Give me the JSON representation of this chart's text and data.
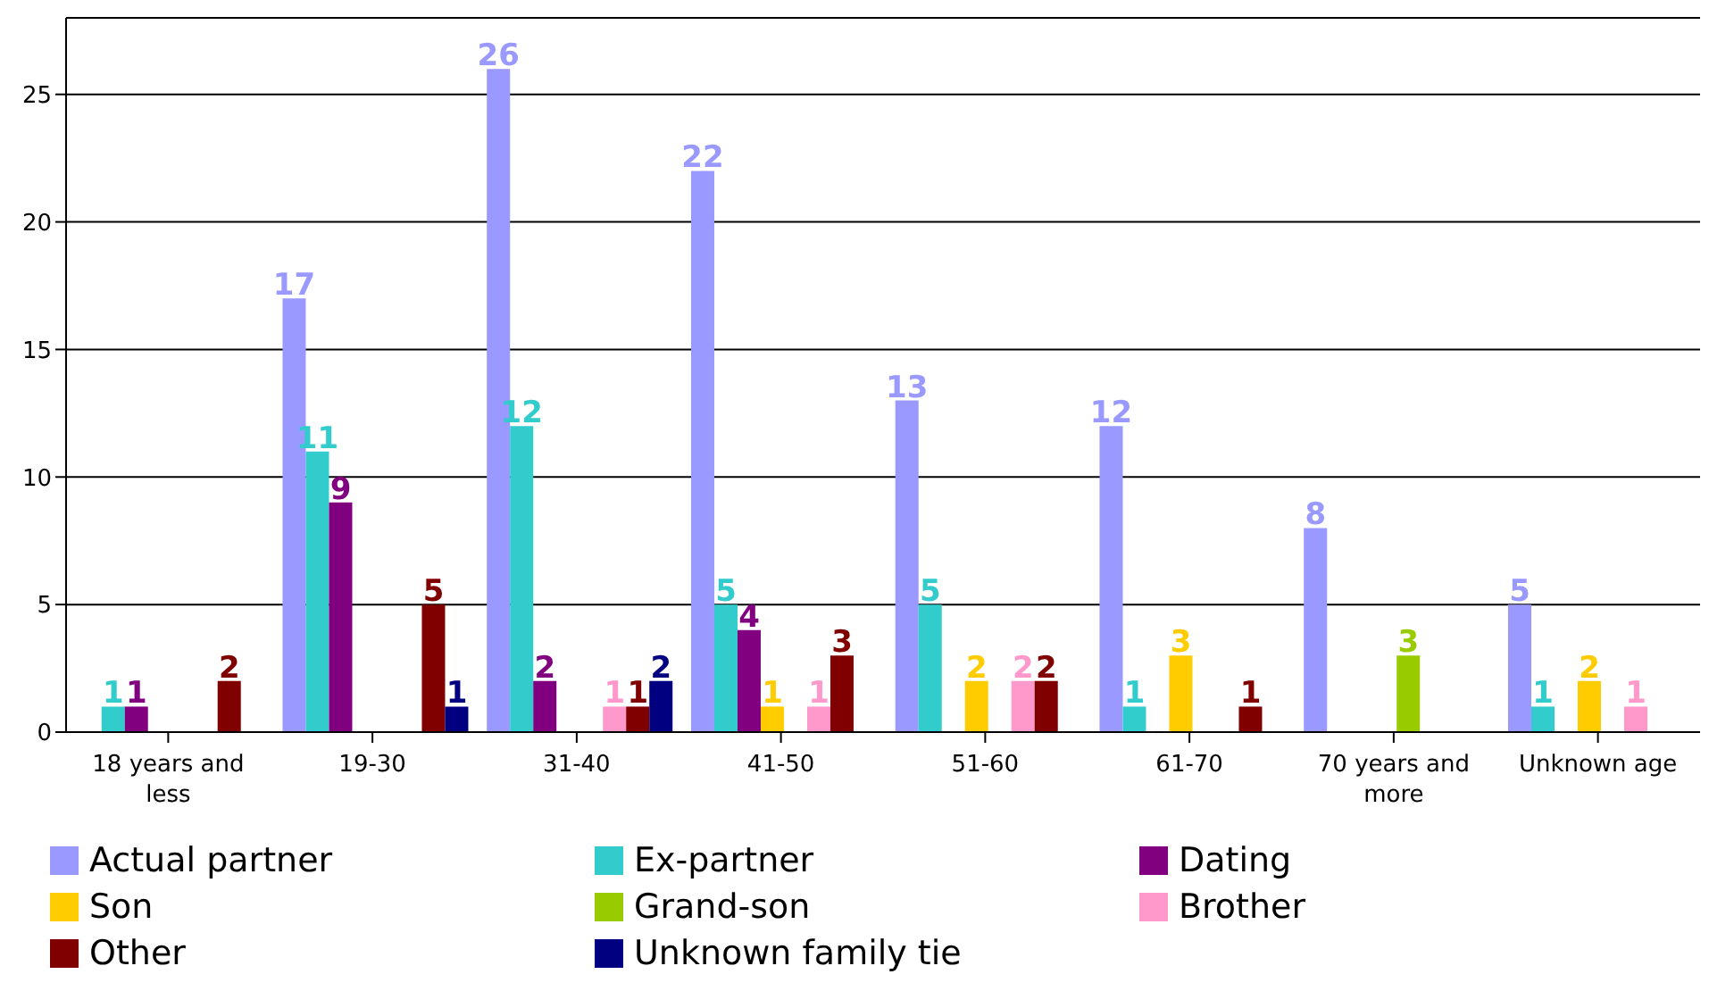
{
  "chart_data": {
    "type": "bar",
    "categories": [
      "18 years and less",
      "19-30",
      "31-40",
      "41-50",
      "51-60",
      "61-70",
      "70 years and more",
      "Unknown age"
    ],
    "series": [
      {
        "name": "Actual partner",
        "color": "#9999ff",
        "values": [
          null,
          17,
          26,
          22,
          13,
          12,
          8,
          5
        ]
      },
      {
        "name": "Ex-partner",
        "color": "#33cccc",
        "values": [
          1,
          11,
          12,
          5,
          5,
          1,
          null,
          1
        ]
      },
      {
        "name": "Dating",
        "color": "#800080",
        "values": [
          1,
          9,
          2,
          4,
          null,
          null,
          null,
          null
        ]
      },
      {
        "name": "Son",
        "color": "#ffcc00",
        "values": [
          null,
          null,
          null,
          1,
          2,
          3,
          null,
          2
        ]
      },
      {
        "name": "Grand-son",
        "color": "#99cc00",
        "values": [
          null,
          null,
          null,
          null,
          null,
          null,
          3,
          null
        ]
      },
      {
        "name": "Brother",
        "color": "#ff99cc",
        "values": [
          null,
          null,
          1,
          1,
          2,
          null,
          null,
          1
        ]
      },
      {
        "name": "Other",
        "color": "#800000",
        "values": [
          2,
          5,
          1,
          3,
          2,
          1,
          null,
          null
        ]
      },
      {
        "name": "Unknown family tie",
        "color": "#000080",
        "values": [
          null,
          1,
          2,
          null,
          null,
          null,
          null,
          null
        ]
      }
    ],
    "ylim": [
      0,
      28
    ],
    "yticks": [
      0,
      5,
      10,
      15,
      20,
      25
    ],
    "grid": "y",
    "legend": "bottom",
    "data_labels": true
  }
}
